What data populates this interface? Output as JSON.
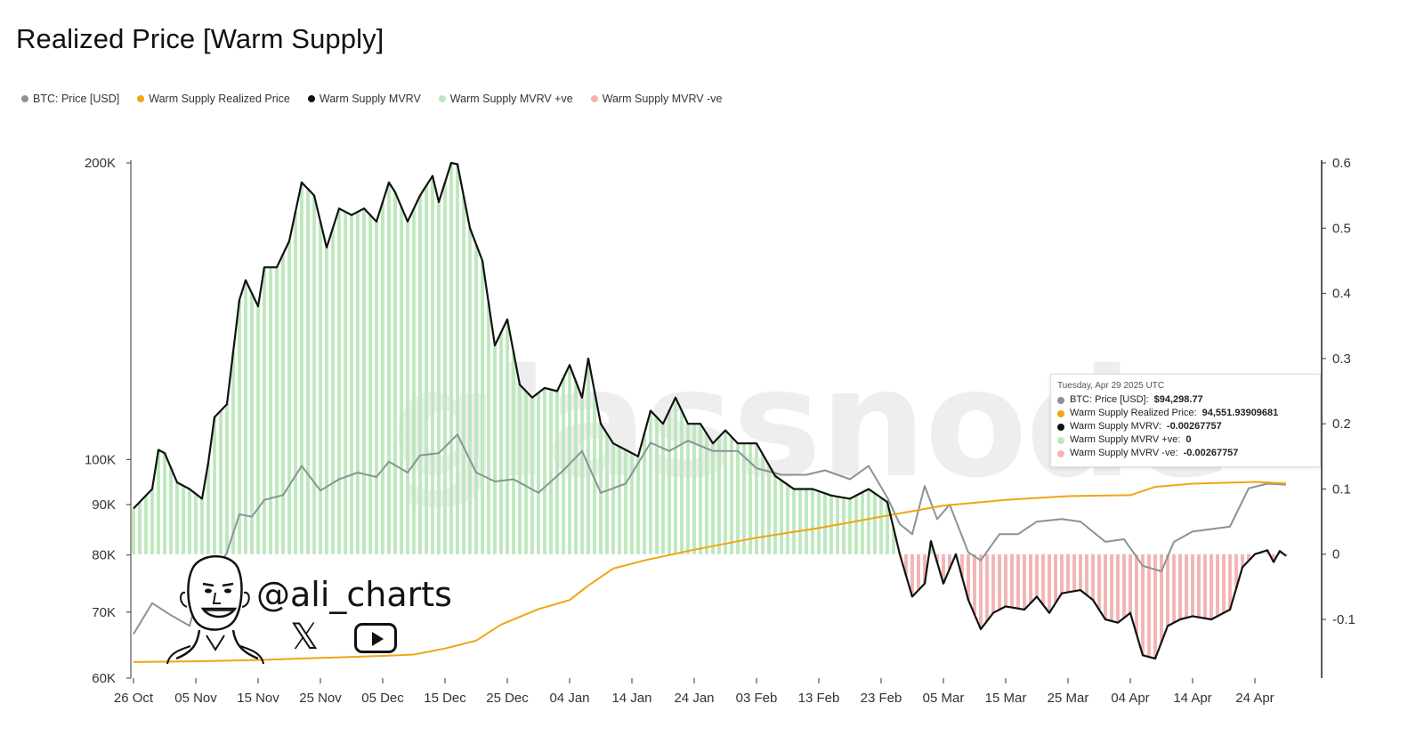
{
  "title": "Realized Price [Warm Supply]",
  "legend": [
    {
      "label": "BTC: Price [USD]",
      "color": "#8a9396"
    },
    {
      "label": "Warm Supply Realized Price",
      "color": "#f0a513"
    },
    {
      "label": "Warm Supply MVRV",
      "color": "#111111"
    },
    {
      "label": "Warm Supply MVRV +ve",
      "color": "#bde8bd"
    },
    {
      "label": "Warm Supply MVRV -ve",
      "color": "#f4b4b4"
    }
  ],
  "tooltip": {
    "date": "Tuesday, Apr 29 2025 UTC",
    "rows": [
      {
        "label": "BTC: Price [USD]:",
        "value": "$94,298.77",
        "color": "#8a9396"
      },
      {
        "label": "Warm Supply Realized Price:",
        "value": "94,551.93909681",
        "color": "#f0a513"
      },
      {
        "label": "Warm Supply MVRV:",
        "value": "-0.00267757",
        "color": "#111111"
      },
      {
        "label": "Warm Supply MVRV +ve:",
        "value": "0",
        "color": "#bde8bd"
      },
      {
        "label": "Warm Supply MVRV -ve:",
        "value": "-0.00267757",
        "color": "#f4b4b4"
      }
    ]
  },
  "watermark": "glassnode",
  "handle": "@ali_charts",
  "icons": {
    "x": "x-logo-icon",
    "youtube": "youtube-play-icon",
    "avatar": "caricature-avatar-icon"
  },
  "chart_data": {
    "type": "line",
    "title": "Realized Price [Warm Supply]",
    "x_start": "2024-10-26",
    "x_end": "2025-04-30",
    "x_tick_labels": [
      "26 Oct",
      "05 Nov",
      "15 Nov",
      "25 Nov",
      "05 Dec",
      "15 Dec",
      "25 Dec",
      "04 Jan",
      "14 Jan",
      "24 Jan",
      "03 Feb",
      "13 Feb",
      "23 Feb",
      "05 Mar",
      "15 Mar",
      "25 Mar",
      "04 Apr",
      "14 Apr",
      "24 Apr"
    ],
    "x_tick_dates": [
      "2024-10-26",
      "2024-11-05",
      "2024-11-15",
      "2024-11-25",
      "2024-12-05",
      "2024-12-15",
      "2024-12-25",
      "2025-01-04",
      "2025-01-14",
      "2025-01-24",
      "2025-02-03",
      "2025-02-13",
      "2025-02-23",
      "2025-03-05",
      "2025-03-15",
      "2025-03-25",
      "2025-04-04",
      "2025-04-14",
      "2025-04-24"
    ],
    "y_left": {
      "scale": "log",
      "ylim": [
        60000,
        200000
      ],
      "ticks": [
        60000,
        70000,
        80000,
        90000,
        100000,
        200000
      ],
      "tick_labels": [
        "60K",
        "70K",
        "80K",
        "90K",
        "100K",
        "200K"
      ]
    },
    "y_right": {
      "scale": "linear",
      "ylim": [
        -0.19,
        0.6
      ],
      "ticks": [
        -0.1,
        0,
        0.1,
        0.2,
        0.3,
        0.4,
        0.5,
        0.6
      ],
      "tick_labels": [
        "-0.1",
        "0",
        "0.1",
        "0.2",
        "0.3",
        "0.4",
        "0.5",
        "0.6"
      ]
    },
    "series": [
      {
        "name": "BTC: Price [USD]",
        "axis": "left",
        "color": "#8a9396",
        "points": [
          [
            "2024-10-26",
            66500
          ],
          [
            "2024-10-29",
            71500
          ],
          [
            "2024-11-01",
            69500
          ],
          [
            "2024-11-04",
            67800
          ],
          [
            "2024-11-06",
            75500
          ],
          [
            "2024-11-08",
            76500
          ],
          [
            "2024-11-10",
            80500
          ],
          [
            "2024-11-12",
            88000
          ],
          [
            "2024-11-14",
            87500
          ],
          [
            "2024-11-16",
            91000
          ],
          [
            "2024-11-19",
            92000
          ],
          [
            "2024-11-22",
            98500
          ],
          [
            "2024-11-25",
            93000
          ],
          [
            "2024-11-28",
            95500
          ],
          [
            "2024-12-01",
            97000
          ],
          [
            "2024-12-04",
            96000
          ],
          [
            "2024-12-06",
            99500
          ],
          [
            "2024-12-09",
            97000
          ],
          [
            "2024-12-11",
            101000
          ],
          [
            "2024-12-14",
            101500
          ],
          [
            "2024-12-17",
            106000
          ],
          [
            "2024-12-20",
            97000
          ],
          [
            "2024-12-23",
            95000
          ],
          [
            "2024-12-26",
            95500
          ],
          [
            "2024-12-30",
            92500
          ],
          [
            "2025-01-03",
            97500
          ],
          [
            "2025-01-06",
            102000
          ],
          [
            "2025-01-09",
            92500
          ],
          [
            "2025-01-13",
            94500
          ],
          [
            "2025-01-17",
            104000
          ],
          [
            "2025-01-20",
            102000
          ],
          [
            "2025-01-23",
            104500
          ],
          [
            "2025-01-27",
            102000
          ],
          [
            "2025-01-31",
            102000
          ],
          [
            "2025-02-03",
            98000
          ],
          [
            "2025-02-07",
            96500
          ],
          [
            "2025-02-11",
            96500
          ],
          [
            "2025-02-14",
            97500
          ],
          [
            "2025-02-18",
            95500
          ],
          [
            "2025-02-21",
            98500
          ],
          [
            "2025-02-24",
            91500
          ],
          [
            "2025-02-26",
            86000
          ],
          [
            "2025-02-28",
            84000
          ],
          [
            "2025-03-02",
            94000
          ],
          [
            "2025-03-04",
            87000
          ],
          [
            "2025-03-06",
            90000
          ],
          [
            "2025-03-09",
            80500
          ],
          [
            "2025-03-11",
            79000
          ],
          [
            "2025-03-14",
            84000
          ],
          [
            "2025-03-17",
            84000
          ],
          [
            "2025-03-20",
            86500
          ],
          [
            "2025-03-24",
            87000
          ],
          [
            "2025-03-27",
            86500
          ],
          [
            "2025-03-31",
            82500
          ],
          [
            "2025-04-03",
            83000
          ],
          [
            "2025-04-06",
            78000
          ],
          [
            "2025-04-09",
            77000
          ],
          [
            "2025-04-11",
            82500
          ],
          [
            "2025-04-14",
            84500
          ],
          [
            "2025-04-17",
            85000
          ],
          [
            "2025-04-20",
            85500
          ],
          [
            "2025-04-23",
            93500
          ],
          [
            "2025-04-26",
            94500
          ],
          [
            "2025-04-29",
            94298.77
          ]
        ]
      },
      {
        "name": "Warm Supply Realized Price",
        "axis": "left",
        "color": "#f0a513",
        "points": [
          [
            "2024-10-26",
            62300
          ],
          [
            "2024-11-05",
            62400
          ],
          [
            "2024-11-15",
            62600
          ],
          [
            "2024-11-25",
            62900
          ],
          [
            "2024-12-05",
            63200
          ],
          [
            "2024-12-10",
            63400
          ],
          [
            "2024-12-15",
            64300
          ],
          [
            "2024-12-20",
            65500
          ],
          [
            "2024-12-24",
            68000
          ],
          [
            "2024-12-30",
            70500
          ],
          [
            "2025-01-04",
            72000
          ],
          [
            "2025-01-07",
            74500
          ],
          [
            "2025-01-11",
            77500
          ],
          [
            "2025-01-16",
            79000
          ],
          [
            "2025-01-24",
            81000
          ],
          [
            "2025-02-03",
            83300
          ],
          [
            "2025-02-13",
            85200
          ],
          [
            "2025-02-23",
            87500
          ],
          [
            "2025-03-05",
            89800
          ],
          [
            "2025-03-15",
            91000
          ],
          [
            "2025-03-25",
            91800
          ],
          [
            "2025-04-04",
            92000
          ],
          [
            "2025-04-08",
            93800
          ],
          [
            "2025-04-14",
            94500
          ],
          [
            "2025-04-24",
            94900
          ],
          [
            "2025-04-29",
            94551.94
          ]
        ]
      },
      {
        "name": "Warm Supply MVRV",
        "axis": "right",
        "color": "#111111",
        "points": [
          [
            "2024-10-26",
            0.07
          ],
          [
            "2024-10-29",
            0.1
          ],
          [
            "2024-10-30",
            0.16
          ],
          [
            "2024-10-31",
            0.155
          ],
          [
            "2024-11-02",
            0.11
          ],
          [
            "2024-11-04",
            0.1
          ],
          [
            "2024-11-06",
            0.085
          ],
          [
            "2024-11-07",
            0.14
          ],
          [
            "2024-11-08",
            0.21
          ],
          [
            "2024-11-10",
            0.23
          ],
          [
            "2024-11-12",
            0.39
          ],
          [
            "2024-11-13",
            0.42
          ],
          [
            "2024-11-15",
            0.38
          ],
          [
            "2024-11-16",
            0.44
          ],
          [
            "2024-11-18",
            0.44
          ],
          [
            "2024-11-20",
            0.48
          ],
          [
            "2024-11-22",
            0.57
          ],
          [
            "2024-11-24",
            0.55
          ],
          [
            "2024-11-26",
            0.47
          ],
          [
            "2024-11-28",
            0.53
          ],
          [
            "2024-11-30",
            0.52
          ],
          [
            "2024-12-02",
            0.53
          ],
          [
            "2024-12-04",
            0.51
          ],
          [
            "2024-12-06",
            0.57
          ],
          [
            "2024-12-07",
            0.555
          ],
          [
            "2024-12-09",
            0.51
          ],
          [
            "2024-12-11",
            0.55
          ],
          [
            "2024-12-13",
            0.58
          ],
          [
            "2024-12-14",
            0.54
          ],
          [
            "2024-12-16",
            0.6
          ],
          [
            "2024-12-17",
            0.598
          ],
          [
            "2024-12-19",
            0.5
          ],
          [
            "2024-12-21",
            0.45
          ],
          [
            "2024-12-23",
            0.32
          ],
          [
            "2024-12-25",
            0.36
          ],
          [
            "2024-12-27",
            0.26
          ],
          [
            "2024-12-29",
            0.24
          ],
          [
            "2024-12-31",
            0.255
          ],
          [
            "2025-01-02",
            0.25
          ],
          [
            "2025-01-04",
            0.29
          ],
          [
            "2025-01-06",
            0.24
          ],
          [
            "2025-01-07",
            0.3
          ],
          [
            "2025-01-09",
            0.2
          ],
          [
            "2025-01-11",
            0.17
          ],
          [
            "2025-01-13",
            0.16
          ],
          [
            "2025-01-15",
            0.15
          ],
          [
            "2025-01-17",
            0.22
          ],
          [
            "2025-01-19",
            0.2
          ],
          [
            "2025-01-21",
            0.24
          ],
          [
            "2025-01-23",
            0.2
          ],
          [
            "2025-01-25",
            0.2
          ],
          [
            "2025-01-27",
            0.17
          ],
          [
            "2025-01-29",
            0.19
          ],
          [
            "2025-01-31",
            0.17
          ],
          [
            "2025-02-03",
            0.17
          ],
          [
            "2025-02-06",
            0.12
          ],
          [
            "2025-02-09",
            0.1
          ],
          [
            "2025-02-12",
            0.1
          ],
          [
            "2025-02-15",
            0.09
          ],
          [
            "2025-02-18",
            0.085
          ],
          [
            "2025-02-21",
            0.1
          ],
          [
            "2025-02-24",
            0.08
          ],
          [
            "2025-02-26",
            0.0
          ],
          [
            "2025-02-28",
            -0.065
          ],
          [
            "2025-03-02",
            -0.045
          ],
          [
            "2025-03-03",
            0.02
          ],
          [
            "2025-03-05",
            -0.045
          ],
          [
            "2025-03-07",
            0.0
          ],
          [
            "2025-03-09",
            -0.07
          ],
          [
            "2025-03-11",
            -0.115
          ],
          [
            "2025-03-13",
            -0.09
          ],
          [
            "2025-03-15",
            -0.08
          ],
          [
            "2025-03-18",
            -0.085
          ],
          [
            "2025-03-20",
            -0.065
          ],
          [
            "2025-03-22",
            -0.09
          ],
          [
            "2025-03-24",
            -0.06
          ],
          [
            "2025-03-27",
            -0.055
          ],
          [
            "2025-03-29",
            -0.07
          ],
          [
            "2025-03-31",
            -0.1
          ],
          [
            "2025-04-02",
            -0.105
          ],
          [
            "2025-04-04",
            -0.09
          ],
          [
            "2025-04-06",
            -0.155
          ],
          [
            "2025-04-08",
            -0.16
          ],
          [
            "2025-04-10",
            -0.11
          ],
          [
            "2025-04-12",
            -0.1
          ],
          [
            "2025-04-14",
            -0.095
          ],
          [
            "2025-04-17",
            -0.1
          ],
          [
            "2025-04-20",
            -0.085
          ],
          [
            "2025-04-22",
            -0.02
          ],
          [
            "2025-04-24",
            0.0
          ],
          [
            "2025-04-26",
            0.006
          ],
          [
            "2025-04-27",
            -0.012
          ],
          [
            "2025-04-28",
            0.005
          ],
          [
            "2025-04-29",
            -0.00267757
          ]
        ]
      }
    ],
    "fills": [
      {
        "name": "Warm Supply MVRV +ve",
        "color": "#bde8bd",
        "source": "Warm Supply MVRV",
        "sign": "positive"
      },
      {
        "name": "Warm Supply MVRV -ve",
        "color": "#f4b4b4",
        "source": "Warm Supply MVRV",
        "sign": "negative"
      }
    ],
    "legend_position": "top-left",
    "grid": false
  }
}
